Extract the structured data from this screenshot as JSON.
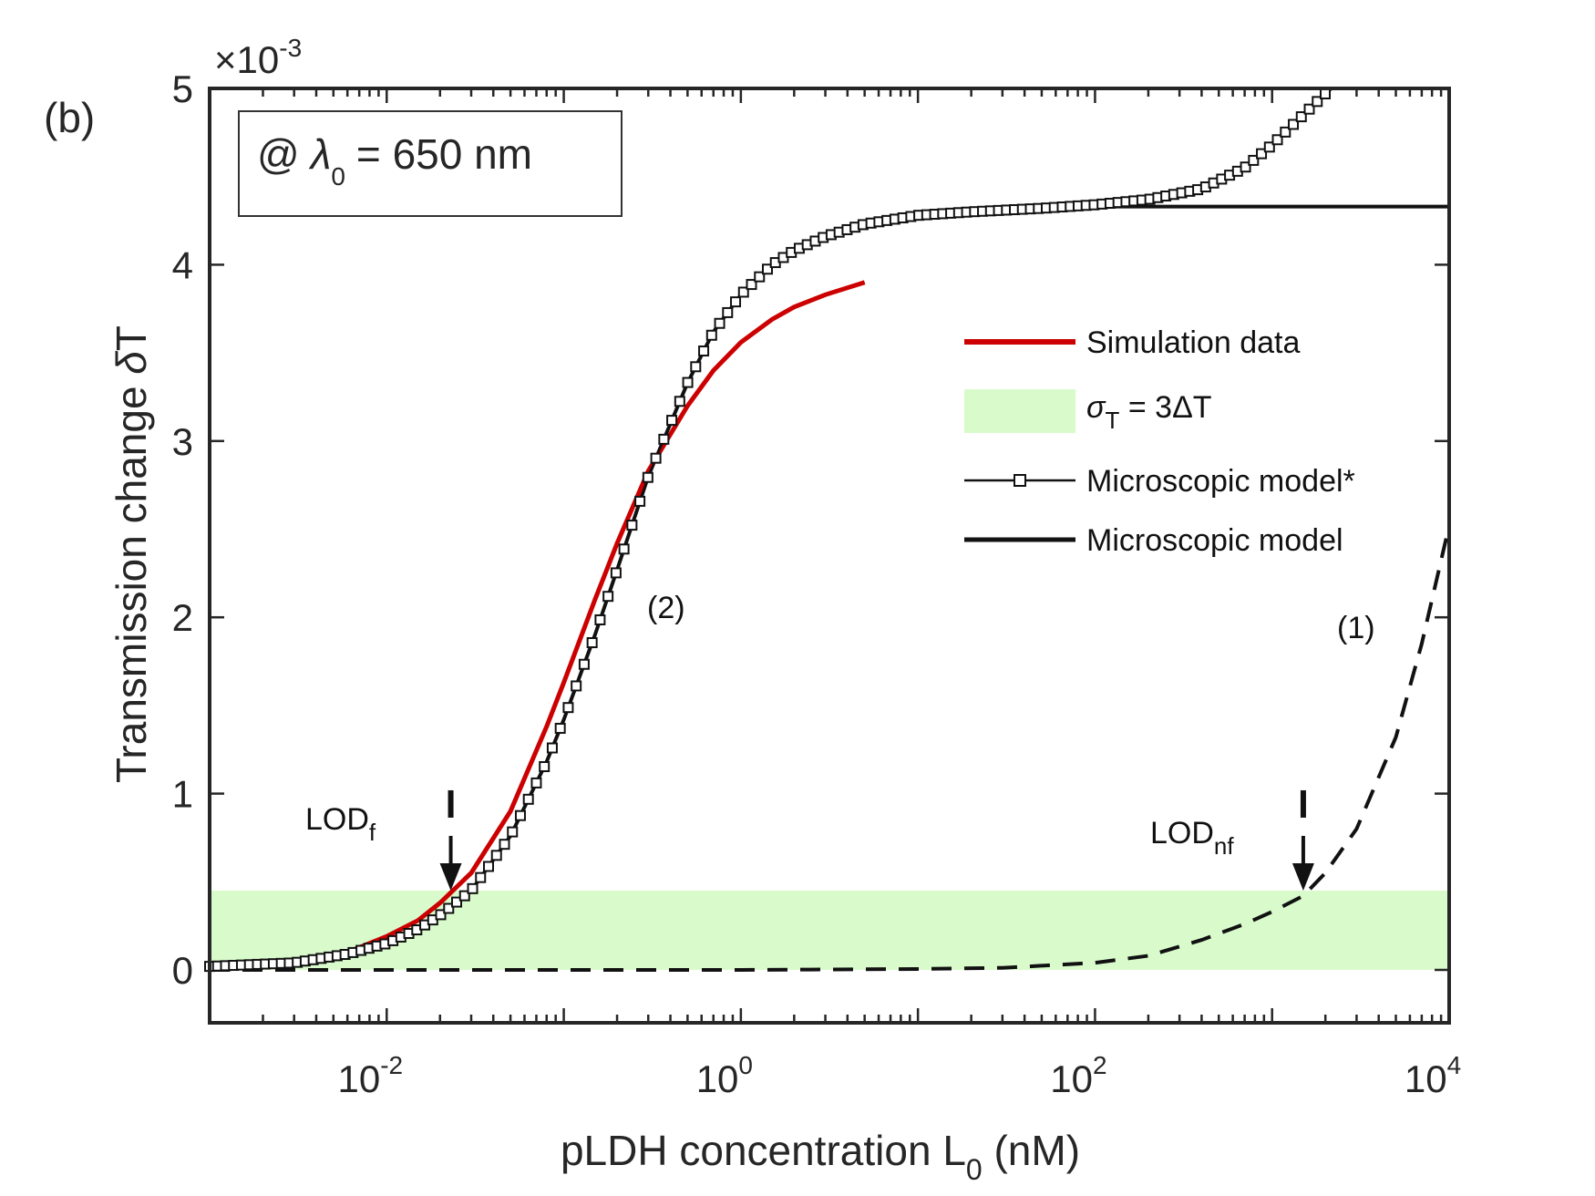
{
  "panel_label": "(b)",
  "annotation_box": {
    "at": "@",
    "lambda": "λ",
    "lambda_sub": "0",
    "rest": "= 650 nm"
  },
  "chart_data": {
    "type": "line",
    "xscale": "log",
    "xlim": [
      0.001,
      10000
    ],
    "ylim": [
      -0.0003,
      0.005
    ],
    "y_multiplier": "×10",
    "y_multiplier_exp": "-3",
    "xlabel": {
      "main": "pLDH concentration L",
      "sub": "0",
      "tail": " (nM)"
    },
    "ylabel": {
      "main": "Transmission change ",
      "delta": "δ",
      "tail": "T"
    },
    "x_ticks": [
      {
        "value": 0.01,
        "base": "10",
        "exp": "-2"
      },
      {
        "value": 1,
        "base": "10",
        "exp": "0"
      },
      {
        "value": 100,
        "base": "10",
        "exp": "2"
      },
      {
        "value": 10000,
        "base": "10",
        "exp": "4"
      }
    ],
    "y_ticks": [
      {
        "value": 0,
        "label": "0"
      },
      {
        "value": 0.001,
        "label": "1"
      },
      {
        "value": 0.002,
        "label": "2"
      },
      {
        "value": 0.003,
        "label": "3"
      },
      {
        "value": 0.004,
        "label": "4"
      },
      {
        "value": 0.005,
        "label": "5"
      }
    ],
    "band": {
      "name": "σT = 3ΔT",
      "y_from": 0,
      "y_to": 0.00045,
      "color": "#d9fbcc"
    },
    "series": [
      {
        "name": "Simulation data",
        "color": "#cc0000",
        "style": "solid",
        "points": [
          [
            0.001,
            2e-05
          ],
          [
            0.003,
            5e-05
          ],
          [
            0.006,
            0.0001
          ],
          [
            0.01,
            0.00019
          ],
          [
            0.015,
            0.00028
          ],
          [
            0.02,
            0.00038
          ],
          [
            0.03,
            0.00055
          ],
          [
            0.05,
            0.0009
          ],
          [
            0.08,
            0.00138
          ],
          [
            0.1,
            0.00163
          ],
          [
            0.15,
            0.0021
          ],
          [
            0.2,
            0.00242
          ],
          [
            0.3,
            0.00283
          ],
          [
            0.5,
            0.0032
          ],
          [
            0.7,
            0.0034
          ],
          [
            1,
            0.00356
          ],
          [
            1.5,
            0.00369
          ],
          [
            2,
            0.00376
          ],
          [
            3,
            0.00383
          ],
          [
            5,
            0.0039
          ]
        ]
      },
      {
        "name": "Microscopic model*",
        "color": "#111111",
        "style": "solid-square-markers",
        "points": [
          [
            0.001,
            2e-05
          ],
          [
            0.003,
            4e-05
          ],
          [
            0.006,
            9e-05
          ],
          [
            0.01,
            0.00015
          ],
          [
            0.015,
            0.00023
          ],
          [
            0.02,
            0.00031
          ],
          [
            0.03,
            0.00045
          ],
          [
            0.05,
            0.00076
          ],
          [
            0.08,
            0.00118
          ],
          [
            0.1,
            0.00142
          ],
          [
            0.15,
            0.0019
          ],
          [
            0.2,
            0.00227
          ],
          [
            0.3,
            0.0028
          ],
          [
            0.5,
            0.00333
          ],
          [
            0.7,
            0.00362
          ],
          [
            1,
            0.00383
          ],
          [
            1.5,
            0.004
          ],
          [
            2,
            0.00408
          ],
          [
            3,
            0.00416
          ],
          [
            5,
            0.00423
          ],
          [
            10,
            0.00428
          ],
          [
            20,
            0.0043
          ],
          [
            50,
            0.00432
          ],
          [
            100,
            0.00434
          ],
          [
            200,
            0.00437
          ],
          [
            400,
            0.00443
          ],
          [
            700,
            0.00455
          ],
          [
            1000,
            0.00468
          ],
          [
            1500,
            0.00485
          ],
          [
            2000,
            0.00497
          ],
          [
            2200,
            0.005
          ]
        ]
      },
      {
        "name": "Microscopic model",
        "color": "#111111",
        "style": "solid",
        "points": [
          [
            0.001,
            2e-05
          ],
          [
            0.003,
            4e-05
          ],
          [
            0.006,
            9e-05
          ],
          [
            0.01,
            0.00015
          ],
          [
            0.015,
            0.00023
          ],
          [
            0.02,
            0.00031
          ],
          [
            0.03,
            0.00045
          ],
          [
            0.05,
            0.00076
          ],
          [
            0.08,
            0.00118
          ],
          [
            0.1,
            0.00142
          ],
          [
            0.15,
            0.0019
          ],
          [
            0.2,
            0.00227
          ],
          [
            0.3,
            0.0028
          ],
          [
            0.5,
            0.00333
          ],
          [
            0.7,
            0.00362
          ],
          [
            1,
            0.00383
          ],
          [
            1.5,
            0.004
          ],
          [
            2,
            0.00408
          ],
          [
            3,
            0.00416
          ],
          [
            5,
            0.00423
          ],
          [
            10,
            0.00428
          ],
          [
            20,
            0.0043
          ],
          [
            50,
            0.00432
          ],
          [
            100,
            0.00433
          ],
          [
            1000,
            0.00433
          ],
          [
            10000,
            0.00433
          ]
        ]
      },
      {
        "name": "",
        "color": "#111111",
        "style": "dashed",
        "points": [
          [
            0.001,
            0
          ],
          [
            1,
            0
          ],
          [
            10,
            5e-06
          ],
          [
            30,
            1.2e-05
          ],
          [
            100,
            4e-05
          ],
          [
            200,
            8e-05
          ],
          [
            400,
            0.00017
          ],
          [
            700,
            0.00026
          ],
          [
            1000,
            0.00033
          ],
          [
            1500,
            0.00042
          ],
          [
            2000,
            0.00055
          ],
          [
            3000,
            0.0008
          ],
          [
            5000,
            0.00132
          ],
          [
            7000,
            0.00185
          ],
          [
            10000,
            0.00252
          ]
        ]
      }
    ],
    "annotations": [
      {
        "text": "LOD",
        "sub": "f",
        "x": 0.023,
        "y": 0.00045
      },
      {
        "text": "LOD",
        "sub": "nf",
        "x": 1500,
        "y": 0.00045
      },
      {
        "text": "(2)",
        "x": 0.3,
        "y": 0.002
      },
      {
        "text": "(1)",
        "x": 2000,
        "y": 0.0019
      }
    ],
    "legend": {
      "position": "center-right",
      "items": [
        {
          "label": "Simulation data",
          "kind": "line",
          "color": "#cc0000"
        },
        {
          "label_sym": "σ",
          "label_sub": "T",
          "label_tail": " = 3ΔT",
          "kind": "patch",
          "color": "#d9fbcc"
        },
        {
          "label": "Microscopic model*",
          "kind": "line-marker",
          "color": "#111111"
        },
        {
          "label": "Microscopic model",
          "kind": "line",
          "color": "#111111"
        }
      ]
    }
  }
}
